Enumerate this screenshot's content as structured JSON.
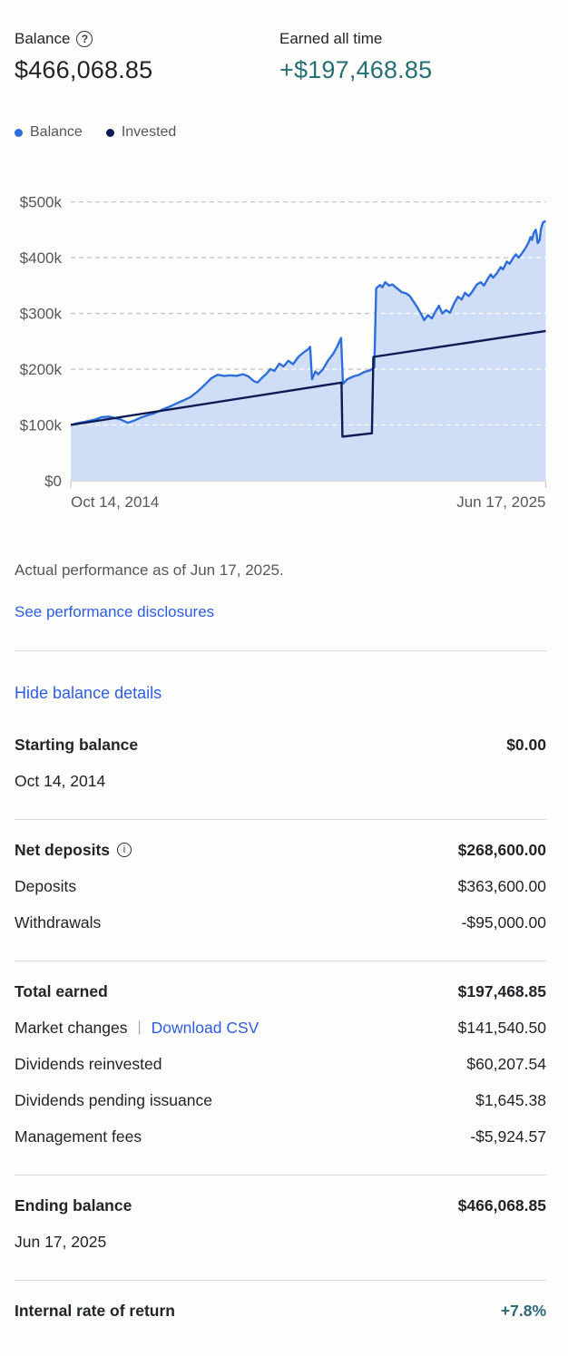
{
  "header": {
    "balance_label": "Balance",
    "balance_value": "$466,068.85",
    "earned_label": "Earned all time",
    "earned_value": "+$197,468.85",
    "earned_color": "#266f77"
  },
  "icons": {
    "question": "?",
    "info": "i"
  },
  "chart_data": {
    "type": "area",
    "units": "thousands USD",
    "x_axis": {
      "start_label": "Oct 14, 2014",
      "end_label": "Jun 17, 2025"
    },
    "ylim": [
      0,
      500000
    ],
    "yticks": [
      {
        "value": 0,
        "label": "$0"
      },
      {
        "value": 100,
        "label": "$100k"
      },
      {
        "value": 200,
        "label": "$200k"
      },
      {
        "value": 300,
        "label": "$300k"
      },
      {
        "value": 400,
        "label": "$400k"
      },
      {
        "value": 500,
        "label": "$500k"
      }
    ],
    "grid": "dashed horizontal",
    "legend_position": "top-left",
    "series": [
      {
        "name": "Balance",
        "color": "#2e6edb",
        "fill": "#cfdef6",
        "points": [
          [
            0,
            100
          ],
          [
            0.013,
            103
          ],
          [
            0.032,
            106
          ],
          [
            0.052,
            110
          ],
          [
            0.065,
            114
          ],
          [
            0.08,
            115
          ],
          [
            0.094,
            112
          ],
          [
            0.105,
            110
          ],
          [
            0.12,
            104
          ],
          [
            0.134,
            108
          ],
          [
            0.147,
            113
          ],
          [
            0.16,
            117
          ],
          [
            0.176,
            121
          ],
          [
            0.191,
            127
          ],
          [
            0.206,
            132
          ],
          [
            0.221,
            138
          ],
          [
            0.237,
            144
          ],
          [
            0.252,
            150
          ],
          [
            0.267,
            160
          ],
          [
            0.282,
            172
          ],
          [
            0.296,
            184
          ],
          [
            0.309,
            190
          ],
          [
            0.323,
            188
          ],
          [
            0.336,
            189
          ],
          [
            0.349,
            188
          ],
          [
            0.363,
            191
          ],
          [
            0.374,
            187
          ],
          [
            0.385,
            179
          ],
          [
            0.393,
            176
          ],
          [
            0.403,
            185
          ],
          [
            0.412,
            192
          ],
          [
            0.42,
            200
          ],
          [
            0.429,
            197
          ],
          [
            0.439,
            210
          ],
          [
            0.448,
            205
          ],
          [
            0.458,
            215
          ],
          [
            0.468,
            209
          ],
          [
            0.479,
            222
          ],
          [
            0.49,
            230
          ],
          [
            0.5,
            236
          ],
          [
            0.504,
            240
          ],
          [
            0.508,
            182
          ],
          [
            0.515,
            196
          ],
          [
            0.521,
            191
          ],
          [
            0.531,
            200
          ],
          [
            0.542,
            216
          ],
          [
            0.552,
            227
          ],
          [
            0.561,
            241
          ],
          [
            0.569,
            256
          ],
          [
            0.573,
            174
          ],
          [
            0.582,
            182
          ],
          [
            0.595,
            187
          ],
          [
            0.607,
            190
          ],
          [
            0.618,
            195
          ],
          [
            0.63,
            198
          ],
          [
            0.639,
            203
          ],
          [
            0.643,
            345
          ],
          [
            0.651,
            351
          ],
          [
            0.656,
            347
          ],
          [
            0.662,
            356
          ],
          [
            0.67,
            350
          ],
          [
            0.677,
            352
          ],
          [
            0.687,
            345
          ],
          [
            0.697,
            338
          ],
          [
            0.706,
            336
          ],
          [
            0.714,
            331
          ],
          [
            0.721,
            322
          ],
          [
            0.729,
            312
          ],
          [
            0.737,
            300
          ],
          [
            0.744,
            288
          ],
          [
            0.752,
            297
          ],
          [
            0.76,
            291
          ],
          [
            0.767,
            302
          ],
          [
            0.775,
            314
          ],
          [
            0.782,
            300
          ],
          [
            0.79,
            306
          ],
          [
            0.798,
            301
          ],
          [
            0.807,
            318
          ],
          [
            0.815,
            330
          ],
          [
            0.823,
            325
          ],
          [
            0.83,
            337
          ],
          [
            0.838,
            331
          ],
          [
            0.845,
            339
          ],
          [
            0.855,
            352
          ],
          [
            0.863,
            356
          ],
          [
            0.87,
            350
          ],
          [
            0.878,
            362
          ],
          [
            0.884,
            370
          ],
          [
            0.889,
            364
          ],
          [
            0.897,
            372
          ],
          [
            0.905,
            383
          ],
          [
            0.91,
            379
          ],
          [
            0.918,
            393
          ],
          [
            0.924,
            389
          ],
          [
            0.931,
            399
          ],
          [
            0.937,
            406
          ],
          [
            0.943,
            400
          ],
          [
            0.95,
            408
          ],
          [
            0.958,
            418
          ],
          [
            0.964,
            428
          ],
          [
            0.968,
            437
          ],
          [
            0.971,
            432
          ],
          [
            0.975,
            445
          ],
          [
            0.979,
            450
          ],
          [
            0.981,
            440
          ],
          [
            0.983,
            426
          ],
          [
            0.987,
            431
          ],
          [
            0.99,
            452
          ],
          [
            0.994,
            463
          ],
          [
            1.0,
            466
          ]
        ]
      },
      {
        "name": "Invested",
        "color": "#0c1b52",
        "points": [
          [
            0,
            100
          ],
          [
            0.57,
            176
          ],
          [
            0.572,
            79
          ],
          [
            0.634,
            85
          ],
          [
            0.637,
            222
          ],
          [
            1.0,
            268.6
          ]
        ]
      }
    ]
  },
  "notes": {
    "performance": "Actual performance as of Jun 17, 2025."
  },
  "links": {
    "disclosures": "See performance disclosures",
    "hide_details": "Hide balance details"
  },
  "details": {
    "sections": [
      {
        "rows": [
          {
            "label": "Starting balance",
            "value": "$0.00",
            "bold": true
          },
          {
            "label": "Oct 14, 2014",
            "value": ""
          }
        ]
      },
      {
        "rows": [
          {
            "label": "Net deposits",
            "value": "$268,600.00",
            "bold": true,
            "info_icon": true
          },
          {
            "label": "Deposits",
            "value": "$363,600.00"
          },
          {
            "label": "Withdrawals",
            "value": "-$95,000.00"
          }
        ]
      },
      {
        "rows": [
          {
            "label": "Total earned",
            "value": "$197,468.85",
            "bold": true
          },
          {
            "label": "Market changes",
            "value": "$141,540.50",
            "link": "Download CSV"
          },
          {
            "label": "Dividends reinvested",
            "value": "$60,207.54"
          },
          {
            "label": "Dividends pending issuance",
            "value": "$1,645.38"
          },
          {
            "label": "Management fees",
            "value": "-$5,924.57"
          }
        ]
      },
      {
        "rows": [
          {
            "label": "Ending balance",
            "value": "$466,068.85",
            "bold": true
          },
          {
            "label": "Jun 17, 2025",
            "value": ""
          }
        ]
      },
      {
        "rows": [
          {
            "label": "Internal rate of return",
            "value": "+7.8%",
            "bold": true,
            "value_color": "teal"
          }
        ]
      }
    ]
  },
  "colors": {
    "link_blue": "#2d5de3",
    "teal_irr": "#2e697b",
    "grid_gray": "#c7c6c3",
    "axis_text": "#55575b",
    "divider": "#dddcd7"
  }
}
